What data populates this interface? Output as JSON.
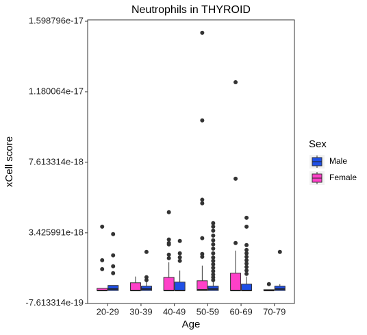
{
  "chart_data": {
    "type": "boxplot",
    "title": "Neutrophils in THYROID",
    "x_label": "Age",
    "y_label": "xCell score",
    "categories": [
      "20-29",
      "30-39",
      "40-49",
      "50-59",
      "60-69",
      "70-79"
    ],
    "ylim": [
      -7.7e-19,
      1.607e-17
    ],
    "yticks": [
      -7.613314e-19,
      3.425991e-18,
      7.613314e-18,
      1.180064e-17,
      1.598796e-17
    ],
    "legend_title": "Sex",
    "legend_position": "right",
    "series": [
      {
        "name": "Male",
        "color": "#1f4fe6",
        "values": [
          {
            "min": 0,
            "q1": 0,
            "median": 9e-20,
            "q3": 3e-19,
            "max": 3e-19,
            "outliers": [
              3.35e-18,
              2.09e-18,
              1.44e-18,
              1.03e-18
            ]
          },
          {
            "min": 0,
            "q1": 0,
            "median": 9e-20,
            "q3": 2.6e-19,
            "max": 5.4e-19,
            "outliers": [
              7.9e-19,
              6.2e-19,
              2.29e-18
            ]
          },
          {
            "min": 0,
            "q1": 0,
            "median": 0,
            "q3": 5e-19,
            "max": 1.19e-18,
            "outliers": [
              2.94e-18,
              2.21e-18,
              1.97e-18,
              1.76e-18
            ]
          },
          {
            "min": 0,
            "q1": 0,
            "median": 9e-20,
            "q3": 2.6e-19,
            "max": 5.8e-19,
            "outliers": [
              4e-18,
              3.79e-18,
              3.55e-18,
              3.26e-18,
              2.98e-18,
              2.74e-18,
              2.49e-18,
              2.21e-18,
              1.96e-18,
              1.76e-18,
              1.56e-18,
              1.35e-18,
              1.15e-18,
              9.5e-19,
              7.8e-19,
              6.2e-19
            ]
          },
          {
            "min": 0,
            "q1": 0,
            "median": 0,
            "q3": 3.8e-19,
            "max": 8.3e-19,
            "outliers": [
              4.32e-18,
              3.79e-18,
              2.7e-18,
              2.41e-18,
              2.21e-18,
              2e-18,
              1.8e-18,
              1.6e-18,
              1.4e-18,
              1.19e-18,
              9.9e-19
            ]
          },
          {
            "min": 0,
            "q1": 0,
            "median": 9e-20,
            "q3": 2.6e-19,
            "max": 3.8e-19,
            "outliers": [
              2.29e-18
            ]
          }
        ]
      },
      {
        "name": "Female",
        "color": "#ff40c8",
        "values": [
          {
            "min": 0,
            "q1": 0,
            "median": 0,
            "q3": 1.3e-19,
            "max": 1.3e-19,
            "outliers": [
              3.79e-18,
              1.8e-18,
              1.27e-18
            ]
          },
          {
            "min": 0,
            "q1": 0,
            "median": 0,
            "q3": 4.6e-19,
            "max": 8.3e-19,
            "outliers": []
          },
          {
            "min": 0,
            "q1": 0,
            "median": 0,
            "q3": 7.8e-19,
            "max": 1.68e-18,
            "outliers": [
              4.65e-18,
              3.03e-18,
              2.82e-18,
              2.74e-18,
              2.13e-18,
              1.92e-18
            ]
          },
          {
            "min": 0,
            "q1": 0,
            "median": 4e-20,
            "q3": 5.8e-19,
            "max": 1.48e-18,
            "outliers": [
              1.53e-17,
              1.01e-17,
              5.39e-18,
              5.18e-18,
              3.11e-18,
              2.17e-18,
              2e-18
            ]
          },
          {
            "min": 0,
            "q1": 0,
            "median": 0,
            "q3": 1.03e-18,
            "max": 2.37e-18,
            "outliers": [
              1.237e-17,
              6.64e-18,
              2.82e-18
            ]
          },
          {
            "min": 0,
            "q1": 0,
            "median": 0,
            "q3": 5e-20,
            "max": 5e-20,
            "outliers": [
              3.8e-19
            ]
          }
        ]
      }
    ]
  }
}
